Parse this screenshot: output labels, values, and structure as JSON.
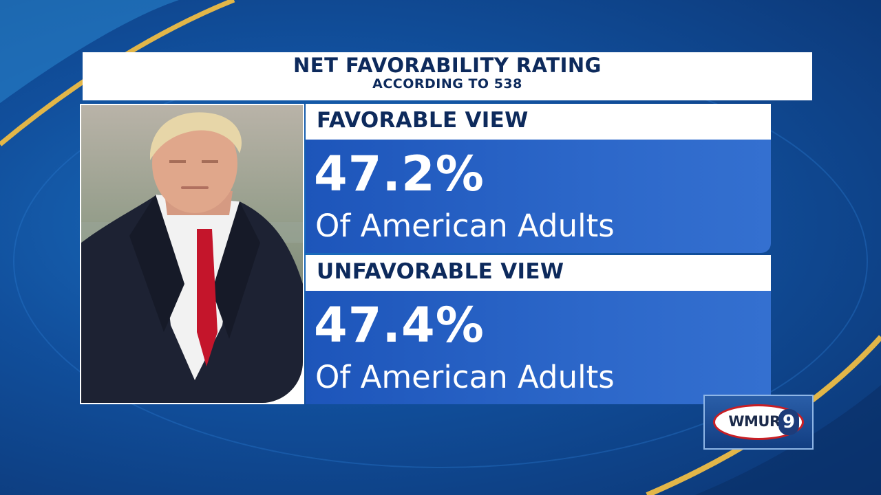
{
  "header": {
    "title": "NET FAVORABILITY RATING",
    "subtitle": "ACCORDING TO 538"
  },
  "favorable": {
    "label": "FAVORABLE VIEW",
    "value": "47.2%",
    "description": "Of American Adults"
  },
  "unfavorable": {
    "label": "UNFAVORABLE VIEW",
    "value": "47.4%",
    "description": "Of American Adults"
  },
  "logo": {
    "text": "WMUR",
    "number": "9"
  },
  "colors": {
    "navy_text": "#0d2a5c",
    "stat_blue": "#2c67c9",
    "background_blue": "#114f9c",
    "gold_swoosh": "#e2b648",
    "logo_red": "#c91e24"
  }
}
